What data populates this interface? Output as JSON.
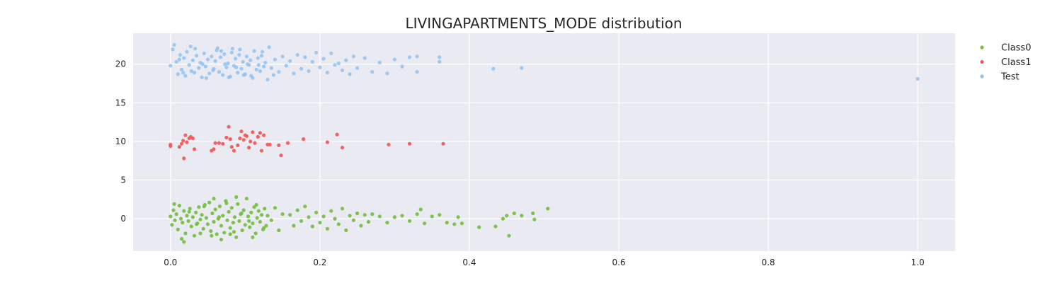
{
  "chart_data": {
    "type": "scatter",
    "title": "LIVINGAPARTMENTS_MODE distribution",
    "xlabel": "",
    "ylabel": "",
    "xlim": [
      -0.05,
      1.05
    ],
    "ylim": [
      -4.2,
      24.0
    ],
    "x_ticks": [
      0.0,
      0.2,
      0.4,
      0.6,
      0.8,
      1.0
    ],
    "x_tick_labels": [
      "0.0",
      "0.2",
      "0.4",
      "0.6",
      "0.8",
      "1.0"
    ],
    "y_ticks": [
      0,
      5,
      10,
      15,
      20
    ],
    "y_tick_labels": [
      "0",
      "5",
      "10",
      "15",
      "20"
    ],
    "grid": true,
    "background": "#eaeaf2",
    "legend_position": "outside-right-top",
    "series": [
      {
        "name": "Class0",
        "color": "#77c043",
        "points": [
          [
            0.0,
            0.3
          ],
          [
            0.002,
            -0.8
          ],
          [
            0.004,
            1.1
          ],
          [
            0.006,
            -0.2
          ],
          [
            0.008,
            0.6
          ],
          [
            0.01,
            -1.4
          ],
          [
            0.012,
            1.7
          ],
          [
            0.014,
            0.0
          ],
          [
            0.016,
            -0.5
          ],
          [
            0.018,
            1.0
          ],
          [
            0.02,
            -1.9
          ],
          [
            0.022,
            0.4
          ],
          [
            0.024,
            -0.3
          ],
          [
            0.026,
            1.3
          ],
          [
            0.028,
            -1.0
          ],
          [
            0.03,
            0.2
          ],
          [
            0.032,
            -2.2
          ],
          [
            0.034,
            0.8
          ],
          [
            0.036,
            -0.6
          ],
          [
            0.038,
            1.5
          ],
          [
            0.04,
            -0.1
          ],
          [
            0.042,
            0.5
          ],
          [
            0.044,
            -1.3
          ],
          [
            0.046,
            1.8
          ],
          [
            0.048,
            0.1
          ],
          [
            0.05,
            -0.7
          ],
          [
            0.052,
            2.1
          ],
          [
            0.054,
            -1.6
          ],
          [
            0.056,
            0.7
          ],
          [
            0.058,
            -0.4
          ],
          [
            0.06,
            1.2
          ],
          [
            0.062,
            -2.0
          ],
          [
            0.064,
            0.0
          ],
          [
            0.066,
            1.6
          ],
          [
            0.068,
            -0.9
          ],
          [
            0.07,
            0.4
          ],
          [
            0.072,
            -1.8
          ],
          [
            0.074,
            2.3
          ],
          [
            0.076,
            -0.2
          ],
          [
            0.078,
            0.9
          ],
          [
            0.08,
            -1.2
          ],
          [
            0.082,
            1.4
          ],
          [
            0.084,
            -0.5
          ],
          [
            0.086,
            0.2
          ],
          [
            0.088,
            -2.4
          ],
          [
            0.09,
            1.9
          ],
          [
            0.092,
            -0.3
          ],
          [
            0.094,
            0.6
          ],
          [
            0.096,
            -1.5
          ],
          [
            0.098,
            1.1
          ],
          [
            0.1,
            -0.8
          ],
          [
            0.102,
            2.6
          ],
          [
            0.104,
            0.3
          ],
          [
            0.106,
            -1.1
          ],
          [
            0.108,
            0.8
          ],
          [
            0.11,
            -0.6
          ],
          [
            0.112,
            1.5
          ],
          [
            0.114,
            -1.9
          ],
          [
            0.116,
            0.1
          ],
          [
            0.118,
            1.0
          ],
          [
            0.12,
            -0.4
          ],
          [
            0.122,
            0.5
          ],
          [
            0.124,
            -1.4
          ],
          [
            0.126,
            1.3
          ],
          [
            0.128,
            -0.9
          ],
          [
            0.13,
            0.4
          ],
          [
            0.135,
            -0.2
          ],
          [
            0.14,
            1.4
          ],
          [
            0.145,
            -1.5
          ],
          [
            0.15,
            0.6
          ],
          [
            0.005,
            1.9
          ],
          [
            0.015,
            -2.6
          ],
          [
            0.025,
            0.9
          ],
          [
            0.035,
            -0.7
          ],
          [
            0.045,
            1.6
          ],
          [
            0.055,
            -2.2
          ],
          [
            0.065,
            0.2
          ],
          [
            0.075,
            2.0
          ],
          [
            0.085,
            -1.7
          ],
          [
            0.095,
            0.7
          ],
          [
            0.105,
            -0.3
          ],
          [
            0.115,
            1.8
          ],
          [
            0.125,
            -1.2
          ],
          [
            0.018,
            -3.0
          ],
          [
            0.058,
            2.6
          ],
          [
            0.088,
            2.8
          ],
          [
            0.068,
            -2.7
          ],
          [
            0.11,
            -2.4
          ],
          [
            0.04,
            -1.9
          ],
          [
            0.08,
            -2.0
          ],
          [
            0.16,
            0.5
          ],
          [
            0.165,
            -0.9
          ],
          [
            0.17,
            1.1
          ],
          [
            0.175,
            -0.3
          ],
          [
            0.18,
            1.6
          ],
          [
            0.185,
            0.2
          ],
          [
            0.19,
            -1.0
          ],
          [
            0.195,
            0.8
          ],
          [
            0.2,
            -0.5
          ],
          [
            0.205,
            0.3
          ],
          [
            0.21,
            -1.3
          ],
          [
            0.215,
            1.0
          ],
          [
            0.22,
            0.0
          ],
          [
            0.225,
            -0.7
          ],
          [
            0.23,
            1.3
          ],
          [
            0.235,
            -1.5
          ],
          [
            0.24,
            0.4
          ],
          [
            0.245,
            -0.2
          ],
          [
            0.25,
            0.7
          ],
          [
            0.255,
            -0.9
          ],
          [
            0.26,
            0.5
          ],
          [
            0.265,
            -0.4
          ],
          [
            0.27,
            0.6
          ],
          [
            0.28,
            0.3
          ],
          [
            0.29,
            -0.5
          ],
          [
            0.3,
            0.2
          ],
          [
            0.31,
            0.4
          ],
          [
            0.32,
            -0.3
          ],
          [
            0.33,
            0.6
          ],
          [
            0.335,
            1.2
          ],
          [
            0.34,
            -0.6
          ],
          [
            0.35,
            0.3
          ],
          [
            0.36,
            0.5
          ],
          [
            0.37,
            -0.5
          ],
          [
            0.38,
            -0.7
          ],
          [
            0.385,
            0.2
          ],
          [
            0.39,
            -0.6
          ],
          [
            0.413,
            -1.1
          ],
          [
            0.435,
            -1.0
          ],
          [
            0.445,
            0.0
          ],
          [
            0.45,
            0.4
          ],
          [
            0.453,
            -2.2
          ],
          [
            0.46,
            0.7
          ],
          [
            0.47,
            0.4
          ],
          [
            0.485,
            0.7
          ],
          [
            0.487,
            -0.1
          ],
          [
            0.505,
            1.3
          ]
        ]
      },
      {
        "name": "Class1",
        "color": "#f15b5b",
        "points": [
          [
            0.0,
            9.6
          ],
          [
            0.0,
            9.4
          ],
          [
            0.012,
            9.3
          ],
          [
            0.015,
            9.7
          ],
          [
            0.017,
            10.1
          ],
          [
            0.018,
            7.8
          ],
          [
            0.02,
            10.8
          ],
          [
            0.022,
            9.9
          ],
          [
            0.025,
            10.4
          ],
          [
            0.027,
            10.6
          ],
          [
            0.03,
            10.4
          ],
          [
            0.032,
            9.0
          ],
          [
            0.055,
            8.8
          ],
          [
            0.058,
            9.0
          ],
          [
            0.06,
            9.8
          ],
          [
            0.065,
            9.8
          ],
          [
            0.07,
            9.7
          ],
          [
            0.075,
            10.5
          ],
          [
            0.078,
            11.9
          ],
          [
            0.08,
            10.3
          ],
          [
            0.082,
            9.3
          ],
          [
            0.085,
            8.8
          ],
          [
            0.09,
            9.5
          ],
          [
            0.093,
            10.4
          ],
          [
            0.095,
            11.3
          ],
          [
            0.098,
            10.2
          ],
          [
            0.1,
            10.8
          ],
          [
            0.102,
            10.7
          ],
          [
            0.105,
            9.2
          ],
          [
            0.107,
            10.0
          ],
          [
            0.11,
            11.2
          ],
          [
            0.113,
            9.8
          ],
          [
            0.117,
            10.6
          ],
          [
            0.12,
            11.1
          ],
          [
            0.122,
            8.8
          ],
          [
            0.125,
            10.8
          ],
          [
            0.13,
            9.6
          ],
          [
            0.133,
            9.6
          ],
          [
            0.145,
            9.5
          ],
          [
            0.148,
            8.2
          ],
          [
            0.157,
            9.8
          ],
          [
            0.178,
            10.3
          ],
          [
            0.21,
            9.9
          ],
          [
            0.223,
            10.9
          ],
          [
            0.23,
            9.2
          ],
          [
            0.292,
            9.6
          ],
          [
            0.32,
            9.7
          ],
          [
            0.365,
            9.7
          ]
        ]
      },
      {
        "name": "Test",
        "color": "#8ec2f2",
        "points": [
          [
            0.0,
            19.8
          ],
          [
            0.005,
            22.5
          ],
          [
            0.008,
            20.3
          ],
          [
            0.01,
            18.7
          ],
          [
            0.013,
            21.2
          ],
          [
            0.015,
            19.3
          ],
          [
            0.018,
            20.8
          ],
          [
            0.02,
            18.5
          ],
          [
            0.022,
            21.6
          ],
          [
            0.025,
            19.9
          ],
          [
            0.027,
            22.3
          ],
          [
            0.03,
            20.5
          ],
          [
            0.032,
            18.9
          ],
          [
            0.035,
            21.1
          ],
          [
            0.038,
            19.5
          ],
          [
            0.04,
            20.2
          ],
          [
            0.042,
            18.3
          ],
          [
            0.045,
            21.4
          ],
          [
            0.047,
            19.7
          ],
          [
            0.05,
            20.6
          ],
          [
            0.052,
            18.8
          ],
          [
            0.055,
            21.0
          ],
          [
            0.057,
            19.2
          ],
          [
            0.06,
            20.4
          ],
          [
            0.062,
            21.8
          ],
          [
            0.065,
            19.0
          ],
          [
            0.067,
            20.9
          ],
          [
            0.07,
            18.6
          ],
          [
            0.072,
            21.3
          ],
          [
            0.075,
            19.6
          ],
          [
            0.077,
            20.1
          ],
          [
            0.08,
            18.4
          ],
          [
            0.082,
            21.5
          ],
          [
            0.085,
            19.8
          ],
          [
            0.087,
            20.7
          ],
          [
            0.09,
            18.9
          ],
          [
            0.092,
            21.2
          ],
          [
            0.095,
            19.4
          ],
          [
            0.097,
            20.3
          ],
          [
            0.1,
            18.7
          ],
          [
            0.102,
            21.0
          ],
          [
            0.105,
            19.9
          ],
          [
            0.107,
            20.5
          ],
          [
            0.11,
            18.2
          ],
          [
            0.112,
            21.7
          ],
          [
            0.115,
            19.3
          ],
          [
            0.117,
            20.8
          ],
          [
            0.12,
            19.1
          ],
          [
            0.122,
            21.1
          ],
          [
            0.125,
            19.7
          ],
          [
            0.127,
            20.2
          ],
          [
            0.13,
            18.0
          ],
          [
            0.132,
            22.2
          ],
          [
            0.135,
            19.5
          ],
          [
            0.14,
            20.6
          ],
          [
            0.145,
            19.0
          ],
          [
            0.15,
            21.0
          ],
          [
            0.155,
            19.8
          ],
          [
            0.16,
            20.4
          ],
          [
            0.165,
            18.8
          ],
          [
            0.17,
            21.2
          ],
          [
            0.175,
            19.4
          ],
          [
            0.18,
            20.9
          ],
          [
            0.185,
            19.1
          ],
          [
            0.19,
            20.3
          ],
          [
            0.195,
            21.5
          ],
          [
            0.2,
            19.6
          ],
          [
            0.205,
            20.7
          ],
          [
            0.21,
            18.9
          ],
          [
            0.215,
            21.4
          ],
          [
            0.22,
            19.9
          ],
          [
            0.225,
            20.1
          ],
          [
            0.23,
            19.2
          ],
          [
            0.235,
            20.5
          ],
          [
            0.24,
            18.7
          ],
          [
            0.245,
            21.0
          ],
          [
            0.25,
            19.5
          ],
          [
            0.26,
            20.8
          ],
          [
            0.27,
            19.0
          ],
          [
            0.28,
            20.2
          ],
          [
            0.29,
            18.8
          ],
          [
            0.3,
            20.6
          ],
          [
            0.31,
            19.7
          ],
          [
            0.32,
            20.9
          ],
          [
            0.33,
            19.0
          ],
          [
            0.33,
            21.0
          ],
          [
            0.36,
            20.3
          ],
          [
            0.36,
            20.9
          ],
          [
            0.432,
            19.4
          ],
          [
            0.47,
            19.5
          ],
          [
            1.0,
            18.1
          ],
          [
            0.003,
            21.9
          ],
          [
            0.017,
            18.9
          ],
          [
            0.033,
            22.0
          ],
          [
            0.048,
            18.2
          ],
          [
            0.063,
            22.1
          ],
          [
            0.078,
            18.3
          ],
          [
            0.093,
            21.9
          ],
          [
            0.108,
            18.5
          ],
          [
            0.123,
            21.6
          ],
          [
            0.138,
            18.6
          ],
          [
            0.012,
            20.6
          ],
          [
            0.028,
            19.1
          ],
          [
            0.043,
            20.0
          ],
          [
            0.058,
            19.4
          ],
          [
            0.073,
            20.0
          ],
          [
            0.088,
            19.6
          ],
          [
            0.103,
            20.0
          ],
          [
            0.118,
            19.9
          ],
          [
            0.068,
            21.7
          ],
          [
            0.083,
            22.0
          ],
          [
            0.098,
            18.6
          ]
        ]
      }
    ]
  }
}
